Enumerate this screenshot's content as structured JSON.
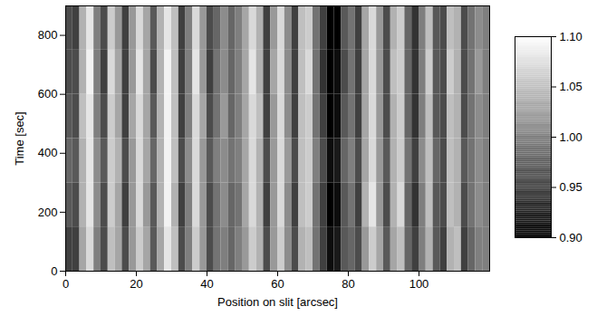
{
  "chart_data": {
    "type": "heatmap",
    "xlabel": "Position on slit [arcsec]",
    "ylabel": "Time [sec]",
    "xlim": [
      0,
      120
    ],
    "xticks": [
      0,
      20,
      40,
      60,
      80,
      100
    ],
    "ylim": [
      0,
      900
    ],
    "yticks": [
      0,
      200,
      400,
      600,
      800
    ],
    "x": [
      1,
      3,
      5,
      7,
      9,
      11,
      13,
      15,
      17,
      19,
      21,
      23,
      25,
      27,
      29,
      31,
      33,
      35,
      37,
      39,
      41,
      43,
      45,
      47,
      49,
      51,
      53,
      55,
      57,
      59,
      61,
      63,
      65,
      67,
      69,
      71,
      73,
      75,
      77,
      79,
      81,
      83,
      85,
      87,
      89,
      91,
      93,
      95,
      97,
      99,
      101,
      103,
      105,
      107,
      109,
      111,
      113,
      115,
      117,
      119
    ],
    "y": [
      75,
      225,
      375,
      525,
      675,
      825
    ],
    "z": [
      [
        0.95,
        0.95,
        1.03,
        1.07,
        1.0,
        0.96,
        1.05,
        1.03,
        0.96,
        1.02,
        1.06,
        1.03,
        0.97,
        1.03,
        1.08,
        1.05,
        0.96,
        1.0,
        1.06,
        1.02,
        0.96,
        0.99,
        1.0,
        0.98,
        1.0,
        1.02,
        1.06,
        1.04,
        0.96,
        1.02,
        1.06,
        1.01,
        0.96,
        1.04,
        1.05,
        0.99,
        0.95,
        0.91,
        0.92,
        0.97,
        0.98,
        0.96,
        1.02,
        1.06,
        1.03,
        0.97,
        1.03,
        1.05,
        0.98,
        0.95,
        1.0,
        1.04,
        0.97,
        0.95,
        1.04,
        1.05,
        0.95,
        0.98,
        1.0,
        1.0
      ],
      [
        0.97,
        0.96,
        1.04,
        1.08,
        1.01,
        0.96,
        1.06,
        1.03,
        0.95,
        1.02,
        1.07,
        1.02,
        0.97,
        1.04,
        1.09,
        1.04,
        0.95,
        1.0,
        1.07,
        1.02,
        0.96,
        0.99,
        1.01,
        0.98,
        0.99,
        1.03,
        1.07,
        1.04,
        0.95,
        1.02,
        1.07,
        1.01,
        0.95,
        1.05,
        1.06,
        0.99,
        0.95,
        0.9,
        0.91,
        0.97,
        0.99,
        0.95,
        1.04,
        1.08,
        1.02,
        0.96,
        1.04,
        1.07,
        0.98,
        0.94,
        1.0,
        1.05,
        0.97,
        0.96,
        1.05,
        1.04,
        0.96,
        0.99,
        1.01,
        1.0
      ],
      [
        0.98,
        0.97,
        1.04,
        1.08,
        1.01,
        0.97,
        1.06,
        1.04,
        0.96,
        1.02,
        1.07,
        1.03,
        0.98,
        1.04,
        1.09,
        1.05,
        0.96,
        1.01,
        1.07,
        1.02,
        0.97,
        1.0,
        1.01,
        0.99,
        1.0,
        1.03,
        1.07,
        1.04,
        0.96,
        1.02,
        1.07,
        1.02,
        0.96,
        1.05,
        1.06,
        1.0,
        0.96,
        0.91,
        0.92,
        0.98,
        1.0,
        0.96,
        1.03,
        1.07,
        1.02,
        0.97,
        1.04,
        1.06,
        0.99,
        0.95,
        1.01,
        1.05,
        0.98,
        0.96,
        1.05,
        1.04,
        0.97,
        0.99,
        1.01,
        1.0
      ],
      [
        0.97,
        0.96,
        1.05,
        1.08,
        1.0,
        0.96,
        1.06,
        1.03,
        0.95,
        1.03,
        1.07,
        1.03,
        0.97,
        1.04,
        1.09,
        1.05,
        0.95,
        1.0,
        1.07,
        1.03,
        0.96,
        0.99,
        1.02,
        0.98,
        1.0,
        1.03,
        1.07,
        1.05,
        0.95,
        1.02,
        1.07,
        1.01,
        0.95,
        1.05,
        1.06,
        0.99,
        0.95,
        0.9,
        0.91,
        0.97,
        0.99,
        0.95,
        1.03,
        1.07,
        1.02,
        0.96,
        1.04,
        1.06,
        0.98,
        0.94,
        1.0,
        1.05,
        0.97,
        0.96,
        1.05,
        1.04,
        0.96,
        0.99,
        1.01,
        1.0
      ],
      [
        0.96,
        0.96,
        1.04,
        1.09,
        1.0,
        0.95,
        1.07,
        1.03,
        0.95,
        1.02,
        1.08,
        1.03,
        0.96,
        1.04,
        1.09,
        1.05,
        0.95,
        1.0,
        1.08,
        1.02,
        0.95,
        0.99,
        1.01,
        0.98,
        1.0,
        1.03,
        1.08,
        1.04,
        0.95,
        1.03,
        1.07,
        1.01,
        0.95,
        1.05,
        1.07,
        0.99,
        0.94,
        0.9,
        0.91,
        0.96,
        0.99,
        0.95,
        1.03,
        1.07,
        1.02,
        0.96,
        1.05,
        1.06,
        0.98,
        0.94,
        1.0,
        1.06,
        0.97,
        0.96,
        1.06,
        1.04,
        0.96,
        0.99,
        1.02,
        1.0
      ],
      [
        0.96,
        0.95,
        1.04,
        1.08,
        1.0,
        0.96,
        1.06,
        1.02,
        0.95,
        1.02,
        1.07,
        1.03,
        0.97,
        1.04,
        1.08,
        1.05,
        0.95,
        1.0,
        1.07,
        1.02,
        0.96,
        0.98,
        1.01,
        0.98,
        1.0,
        1.03,
        1.07,
        1.04,
        0.95,
        1.02,
        1.07,
        1.01,
        0.95,
        1.05,
        1.06,
        0.99,
        0.95,
        0.9,
        0.9,
        0.97,
        0.99,
        0.95,
        1.03,
        1.07,
        1.02,
        0.96,
        1.04,
        1.06,
        0.98,
        0.94,
        1.0,
        1.05,
        0.97,
        0.96,
        1.05,
        1.04,
        0.96,
        0.99,
        1.01,
        1.0
      ]
    ],
    "colorbar": {
      "lim": [
        0.9,
        1.1
      ],
      "ticks": [
        {
          "value": 0.9,
          "label": "0.90"
        },
        {
          "value": 0.95,
          "label": "0.95"
        },
        {
          "value": 1.0,
          "label": "1.00"
        },
        {
          "value": 1.05,
          "label": "1.05"
        },
        {
          "value": 1.1,
          "label": "1.10"
        }
      ]
    }
  }
}
